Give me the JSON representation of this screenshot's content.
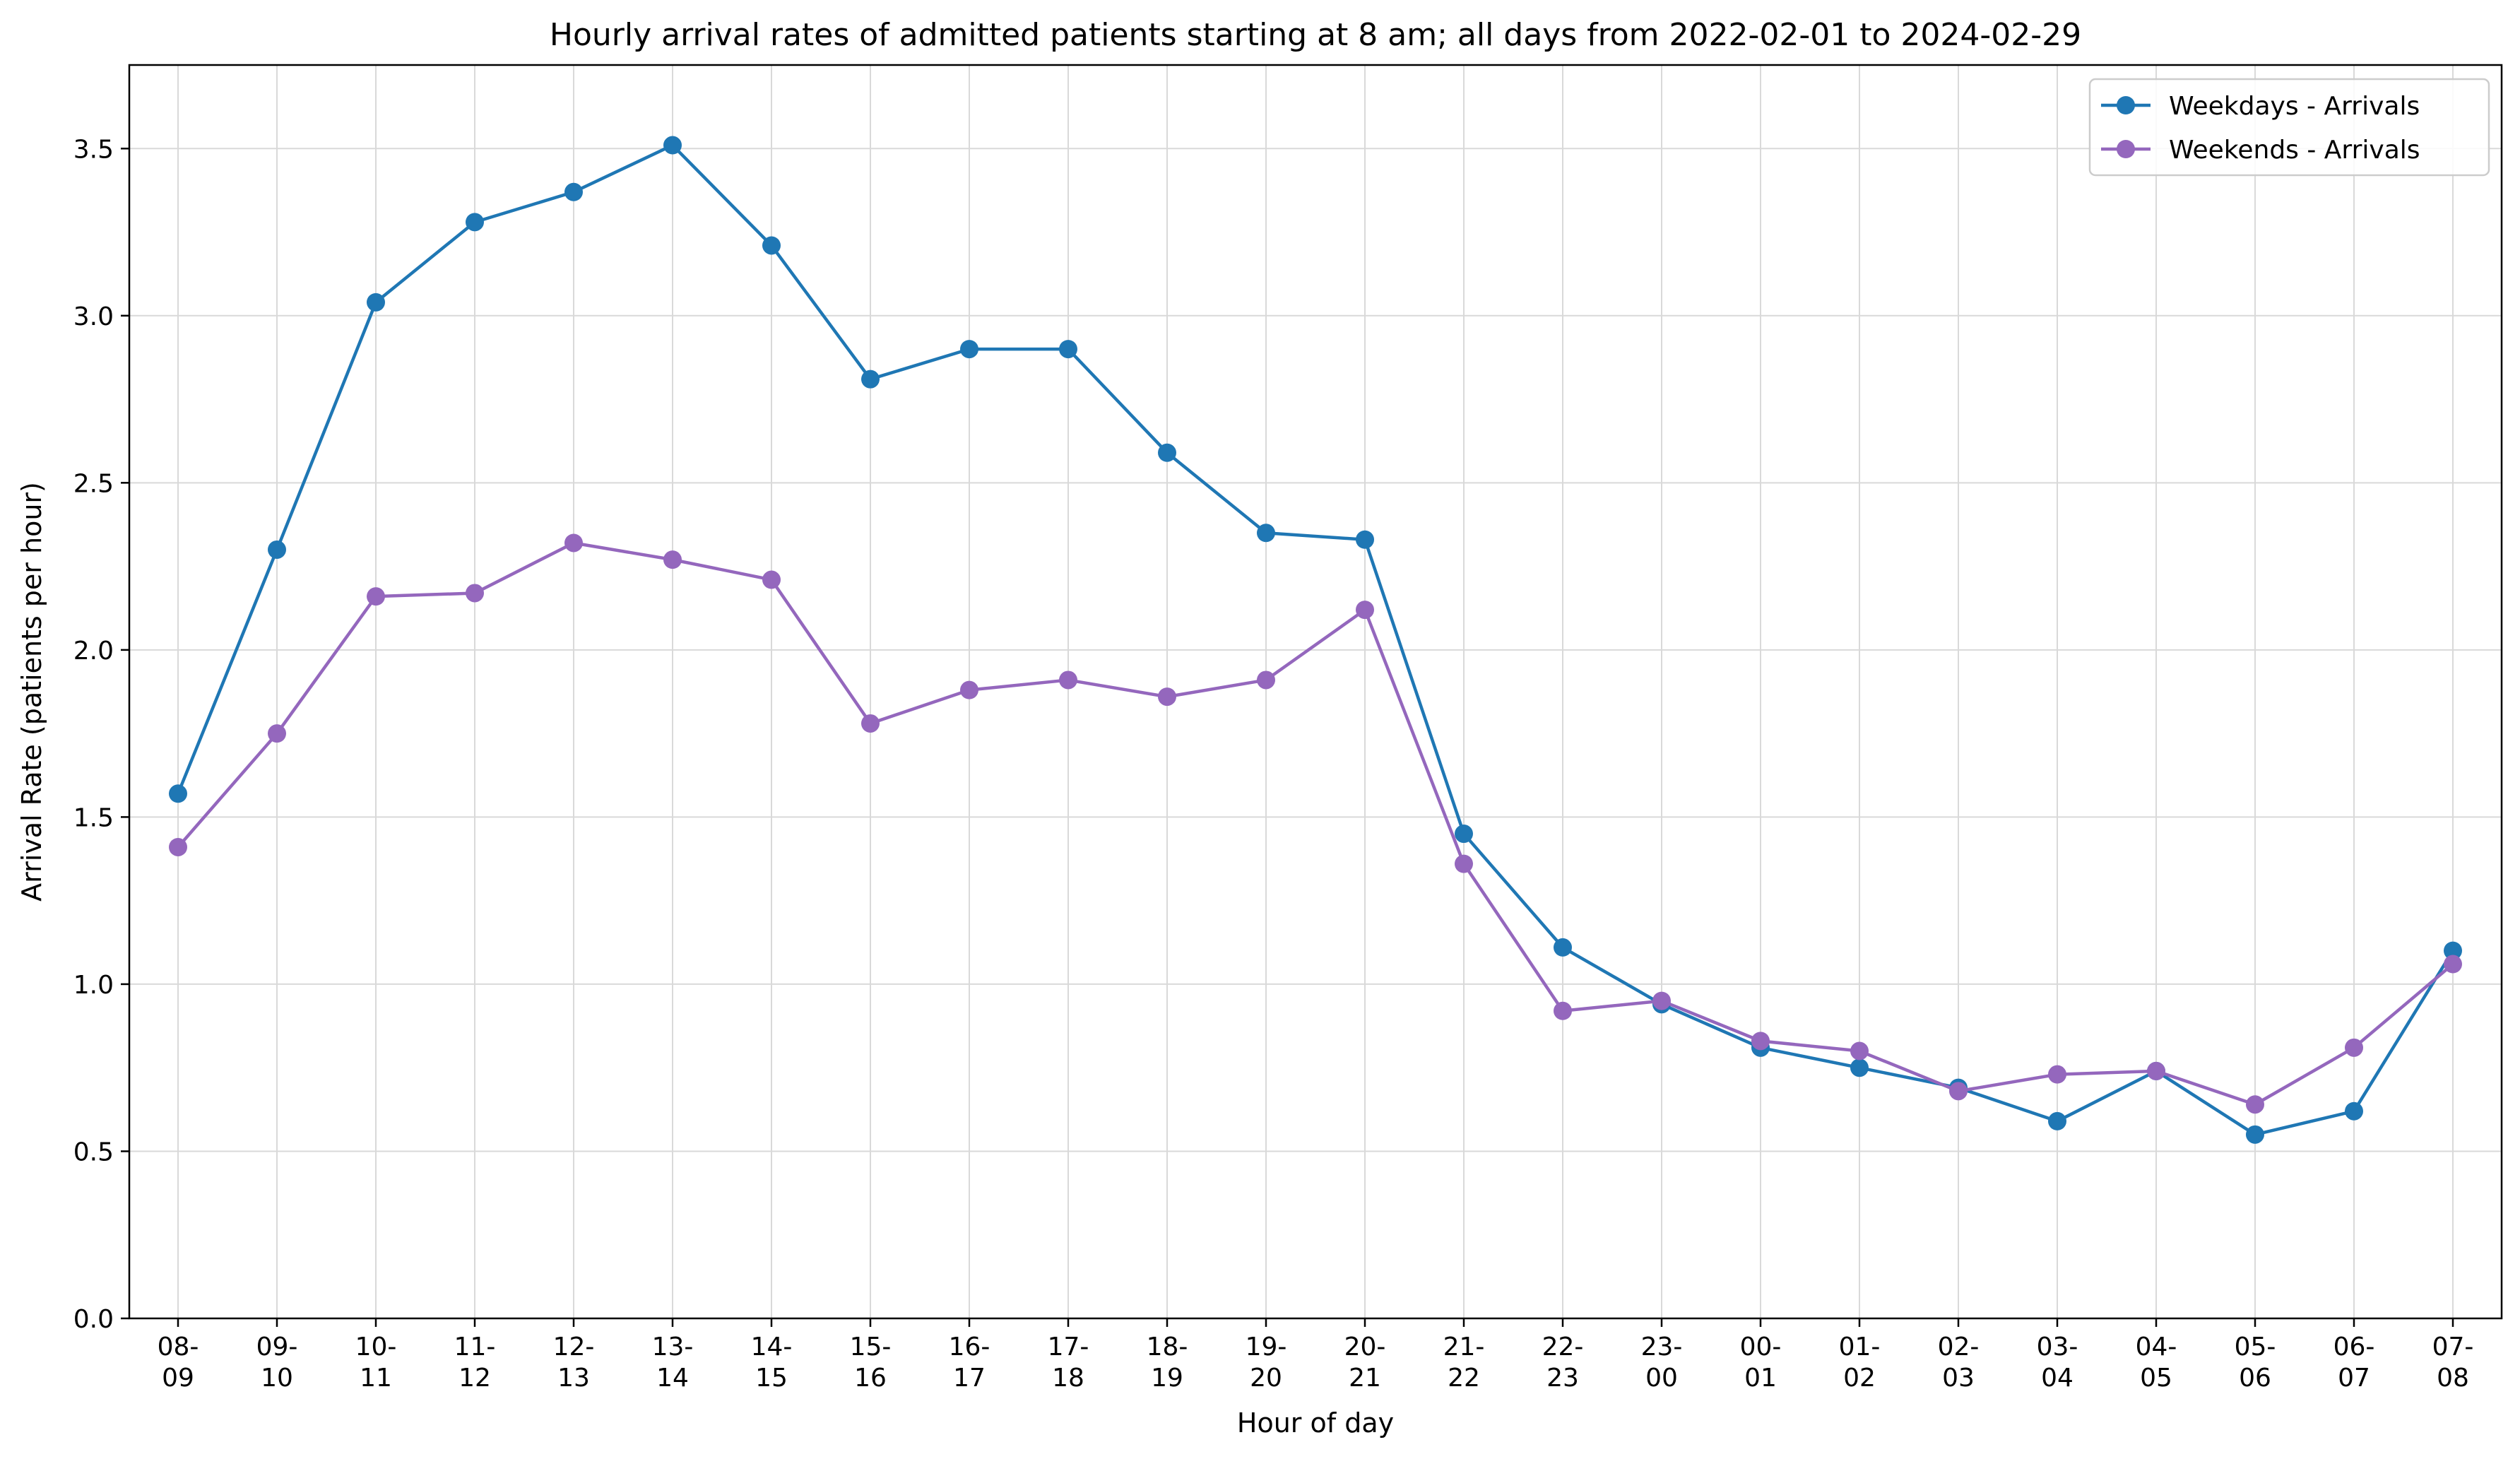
{
  "chart_data": {
    "type": "line",
    "title": "Hourly arrival rates of admitted patients starting at 8 am; all days from 2022-02-01 to 2024-02-29",
    "xlabel": "Hour of day",
    "ylabel": "Arrival Rate (patients per hour)",
    "ylim": [
      0.0,
      3.75
    ],
    "yticks": [
      "0.0",
      "0.5",
      "1.0",
      "1.5",
      "2.0",
      "2.5",
      "3.0",
      "3.5"
    ],
    "grid": true,
    "legend_position": "top-right",
    "categories": [
      [
        "08-",
        "09"
      ],
      [
        "09-",
        "10"
      ],
      [
        "10-",
        "11"
      ],
      [
        "11-",
        "12"
      ],
      [
        "12-",
        "13"
      ],
      [
        "13-",
        "14"
      ],
      [
        "14-",
        "15"
      ],
      [
        "15-",
        "16"
      ],
      [
        "16-",
        "17"
      ],
      [
        "17-",
        "18"
      ],
      [
        "18-",
        "19"
      ],
      [
        "19-",
        "20"
      ],
      [
        "20-",
        "21"
      ],
      [
        "21-",
        "22"
      ],
      [
        "22-",
        "23"
      ],
      [
        "23-",
        "00"
      ],
      [
        "00-",
        "01"
      ],
      [
        "01-",
        "02"
      ],
      [
        "02-",
        "03"
      ],
      [
        "03-",
        "04"
      ],
      [
        "04-",
        "05"
      ],
      [
        "05-",
        "06"
      ],
      [
        "06-",
        "07"
      ],
      [
        "07-",
        "08"
      ]
    ],
    "series": [
      {
        "name": "Weekdays - Arrivals",
        "color": "#1f77b4",
        "values": [
          1.57,
          2.3,
          3.04,
          3.28,
          3.37,
          3.51,
          3.21,
          2.81,
          2.9,
          2.9,
          2.59,
          2.35,
          2.33,
          1.45,
          1.11,
          0.94,
          0.81,
          0.75,
          0.69,
          0.59,
          0.74,
          0.55,
          0.62,
          1.1
        ]
      },
      {
        "name": "Weekends - Arrivals",
        "color": "#9467bd",
        "values": [
          1.41,
          1.75,
          2.16,
          2.17,
          2.32,
          2.27,
          2.21,
          1.78,
          1.88,
          1.91,
          1.86,
          1.91,
          2.12,
          1.36,
          0.92,
          0.95,
          0.83,
          0.8,
          0.68,
          0.73,
          0.74,
          0.64,
          0.81,
          1.06
        ]
      }
    ]
  }
}
